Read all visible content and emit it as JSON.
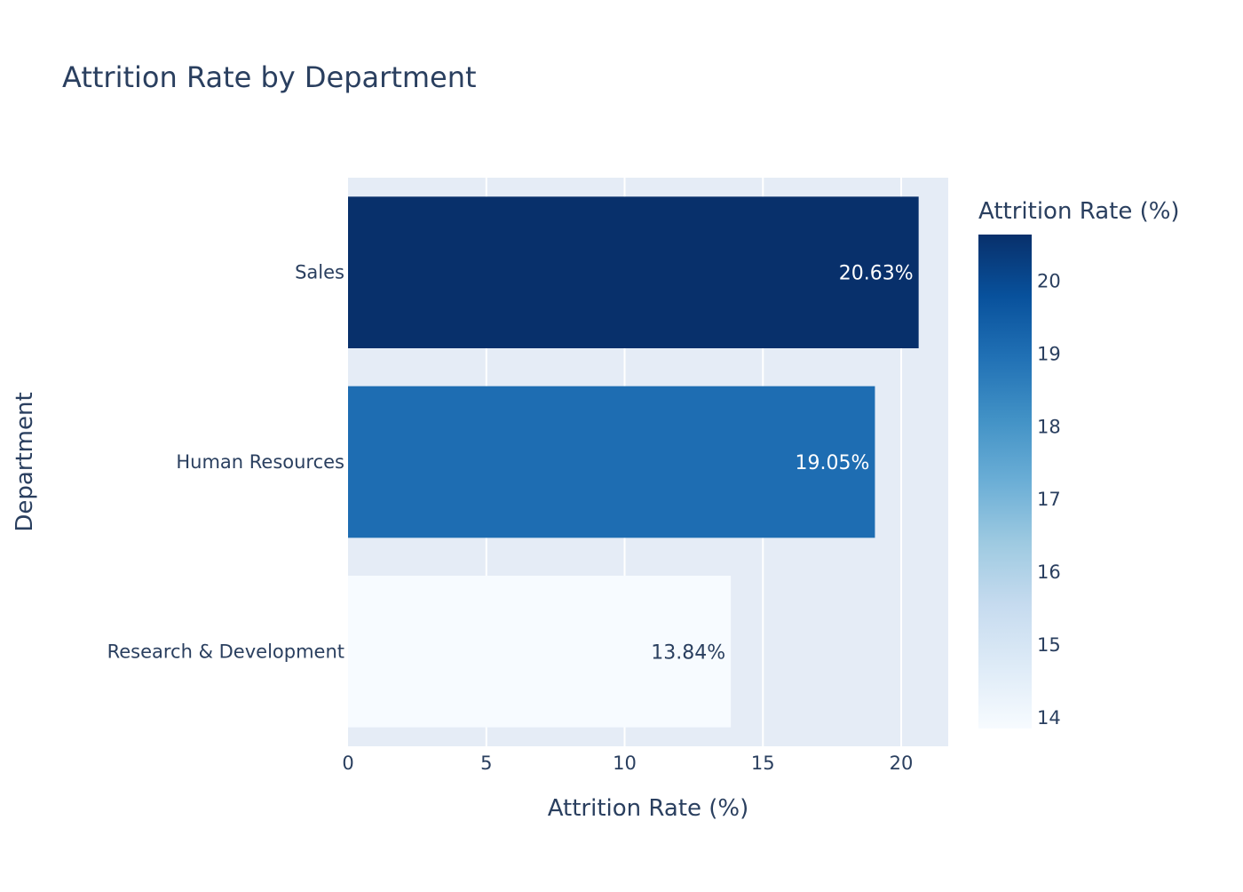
{
  "chart_data": {
    "type": "bar",
    "orientation": "horizontal",
    "title": "Attrition Rate by Department",
    "xlabel": "Attrition Rate (%)",
    "ylabel": "Department",
    "categories": [
      "Sales",
      "Human Resources",
      "Research & Development"
    ],
    "values": [
      20.63,
      19.05,
      13.84
    ],
    "data_labels": [
      "20.63%",
      "19.05%",
      "13.84%"
    ],
    "xlim": [
      0,
      21.7
    ],
    "xticks": [
      0,
      5,
      10,
      15,
      20
    ],
    "grid": "vertical",
    "colorbar": {
      "title": "Attrition Rate (%)",
      "colorscale": "Blues",
      "range": [
        13.84,
        20.63
      ],
      "ticks": [
        14,
        15,
        16,
        17,
        18,
        19,
        20
      ]
    },
    "colors": {
      "plot_bg": "#e5ecf6",
      "grid": "#ffffff",
      "text": "#2a3f5f",
      "scale_low": "#f7fbff",
      "scale_high": "#08306b"
    }
  }
}
